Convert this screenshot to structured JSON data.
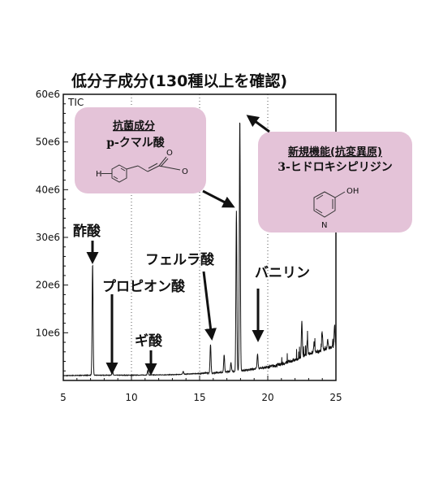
{
  "chart_data": {
    "type": "line",
    "title": "低分子成分(130種以上を確認)",
    "trace_label": "TIC",
    "xlabel": "",
    "ylabel": "",
    "xlim": [
      5,
      25
    ],
    "ylim": [
      0,
      60000000
    ],
    "x_ticks": [
      5,
      10,
      15,
      20,
      25
    ],
    "y_ticks": [
      {
        "value": 10000000,
        "label": "10e6"
      },
      {
        "value": 20000000,
        "label": "20e6"
      },
      {
        "value": 30000000,
        "label": "30e6"
      },
      {
        "value": 40000000,
        "label": "40e6"
      },
      {
        "value": 50000000,
        "label": "50e6"
      },
      {
        "value": 60000000,
        "label": "60e6"
      }
    ],
    "grid": "vertical-dotted",
    "color": "#111111",
    "series": [
      {
        "baseline": [
          [
            5,
            1000000
          ],
          [
            7,
            1100000
          ],
          [
            10,
            1100000
          ],
          [
            13,
            1200000
          ],
          [
            16,
            1600000
          ],
          [
            18,
            2000000
          ],
          [
            20,
            2800000
          ],
          [
            21,
            3400000
          ],
          [
            22,
            4300000
          ],
          [
            23,
            5600000
          ],
          [
            24,
            6300000
          ],
          [
            25,
            7200000
          ]
        ],
        "peaks": [
          {
            "x": 7.15,
            "y": 24500000,
            "name": "酢酸"
          },
          {
            "x": 8.6,
            "y": 2300000,
            "name": "プロピオン酸"
          },
          {
            "x": 11.2,
            "y": 2100000,
            "name": "ギ酸"
          },
          {
            "x": 13.8,
            "y": 1900000
          },
          {
            "x": 15.8,
            "y": 7500000,
            "name": "フェルラ酸"
          },
          {
            "x": 16.8,
            "y": 5300000
          },
          {
            "x": 17.3,
            "y": 3800000
          },
          {
            "x": 17.7,
            "y": 35500000,
            "name": "p-クマル酸"
          },
          {
            "x": 17.95,
            "y": 55000000,
            "name": "3-ヒドロキシピリジン"
          },
          {
            "x": 19.25,
            "y": 5500000,
            "name": "バニリン"
          },
          {
            "x": 22.5,
            "y": 12500000
          },
          {
            "x": 22.9,
            "y": 8500000
          },
          {
            "x": 23.4,
            "y": 8000000
          },
          {
            "x": 24.0,
            "y": 10000000
          },
          {
            "x": 24.4,
            "y": 8500000
          },
          {
            "x": 24.9,
            "y": 11500000
          }
        ]
      }
    ]
  },
  "annotations": {
    "acetic": "酢酸",
    "propionic": "プロピオン酸",
    "formic": "ギ酸",
    "ferulic": "フェルラ酸",
    "vanillin": "バニリン"
  },
  "box_antibacterial": {
    "heading": "抗菌成分",
    "compound": "p-クマル酸",
    "atom_o_top": "O",
    "atom_o_right": "O",
    "atom_h": "H"
  },
  "box_new": {
    "heading": "新規機能(抗変異原)",
    "compound": "3-ヒドロキシピリジン",
    "atom_oh": "OH",
    "atom_n": "N"
  },
  "colors": {
    "box_fill": "#e4c3d8",
    "line": "#111111",
    "axis": "#111111"
  }
}
